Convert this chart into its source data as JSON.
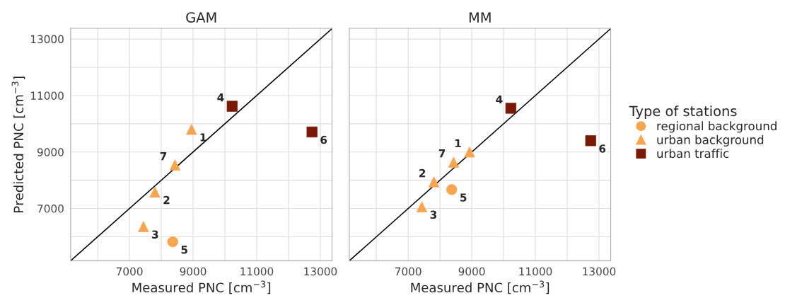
{
  "chart_data": [
    {
      "type": "scatter",
      "title": "GAM",
      "xlabel": "Measured PNC [cm$^{−3}$]",
      "ylabel": "Predicted PNC [cm$^{−3}$]",
      "xlim": [
        5150,
        13370
      ],
      "ylim": [
        5150,
        13380
      ],
      "xticks": [
        {
          "value": 6000,
          "label": null
        },
        7000,
        {
          "value": 8000,
          "label": null
        },
        9000,
        {
          "value": 10000,
          "label": null
        },
        11000,
        {
          "value": 12000,
          "label": null
        },
        13000
      ],
      "yticks": [
        {
          "value": 6000,
          "label": null
        },
        7000,
        {
          "value": 8000,
          "label": null
        },
        9000,
        {
          "value": 10000,
          "label": null
        },
        11000,
        {
          "value": 12000,
          "label": null
        },
        13000
      ],
      "grid": true,
      "series": [
        {
          "color": "#f9a54e",
          "marker": "circle",
          "x": [
            8360
          ],
          "values": [
            5820
          ]
        },
        {
          "color": "#f9a54e",
          "marker": "triangle",
          "x": [
            8950,
            7800,
            7440,
            8430
          ],
          "values": [
            9800,
            7580,
            6360,
            8540
          ]
        },
        {
          "color": "#7a1a06",
          "marker": "square",
          "x": [
            10230,
            12740
          ],
          "values": [
            10620,
            9710
          ]
        },
        {
          "type": "line",
          "color": "#000000",
          "x": [
            5150,
            13370
          ],
          "values": [
            5150,
            13370
          ]
        }
      ],
      "annotations": [
        {
          "text": "1",
          "x": 8950,
          "y": 9800
        },
        {
          "text": "2",
          "x": 7800,
          "y": 7580
        },
        {
          "text": "3",
          "x": 7440,
          "y": 6360
        },
        {
          "text": "4",
          "x": 10230,
          "y": 10620
        },
        {
          "text": "5",
          "x": 8360,
          "y": 5820
        },
        {
          "text": "6",
          "x": 12740,
          "y": 9710
        },
        {
          "text": "7",
          "x": 8430,
          "y": 8540
        }
      ]
    },
    {
      "type": "scatter",
      "title": "MM",
      "xlabel": "Measured PNC [cm$^{−3}$]",
      "legend_title": "Type of stations",
      "legend": "right",
      "tick_labels": "x",
      "xlim": [
        5150,
        13370
      ],
      "ylim": [
        5150,
        13380
      ],
      "xticks": [
        {
          "value": 6000,
          "label": null
        },
        7000,
        {
          "value": 8000,
          "label": null
        },
        9000,
        {
          "value": 10000,
          "label": null
        },
        11000,
        {
          "value": 12000,
          "label": null
        },
        13000
      ],
      "yticks": [
        {
          "value": 6000,
          "label": null
        },
        7000,
        {
          "value": 8000,
          "label": null
        },
        9000,
        {
          "value": 10000,
          "label": null
        },
        11000,
        {
          "value": 12000,
          "label": null
        },
        13000
      ],
      "grid": true,
      "series": [
        {
          "name": "regional background",
          "color": "#f9a54e",
          "marker": "circle",
          "x": [
            8370
          ],
          "values": [
            7670
          ]
        },
        {
          "name": "urban background",
          "color": "#f9a54e",
          "marker": "triangle",
          "x": [
            8930,
            7810,
            7430,
            8430
          ],
          "values": [
            9000,
            7940,
            7060,
            8640
          ]
        },
        {
          "name": "urban traffic",
          "color": "#7a1a06",
          "marker": "square",
          "x": [
            10230,
            12740
          ],
          "values": [
            10550,
            9400
          ]
        },
        {
          "type": "line",
          "color": "#000000",
          "x": [
            5150,
            13370
          ],
          "values": [
            5150,
            13370
          ]
        }
      ],
      "annotations": [
        {
          "text": "1",
          "x": 8930,
          "y": 9000
        },
        {
          "text": "2",
          "x": 7810,
          "y": 7940
        },
        {
          "text": "3",
          "x": 7430,
          "y": 7060
        },
        {
          "text": "4",
          "x": 10230,
          "y": 10550
        },
        {
          "text": "5",
          "x": 8370,
          "y": 7670
        },
        {
          "text": "6",
          "x": 12740,
          "y": 9400
        },
        {
          "text": "7",
          "x": 8430,
          "y": 8640
        }
      ]
    }
  ]
}
